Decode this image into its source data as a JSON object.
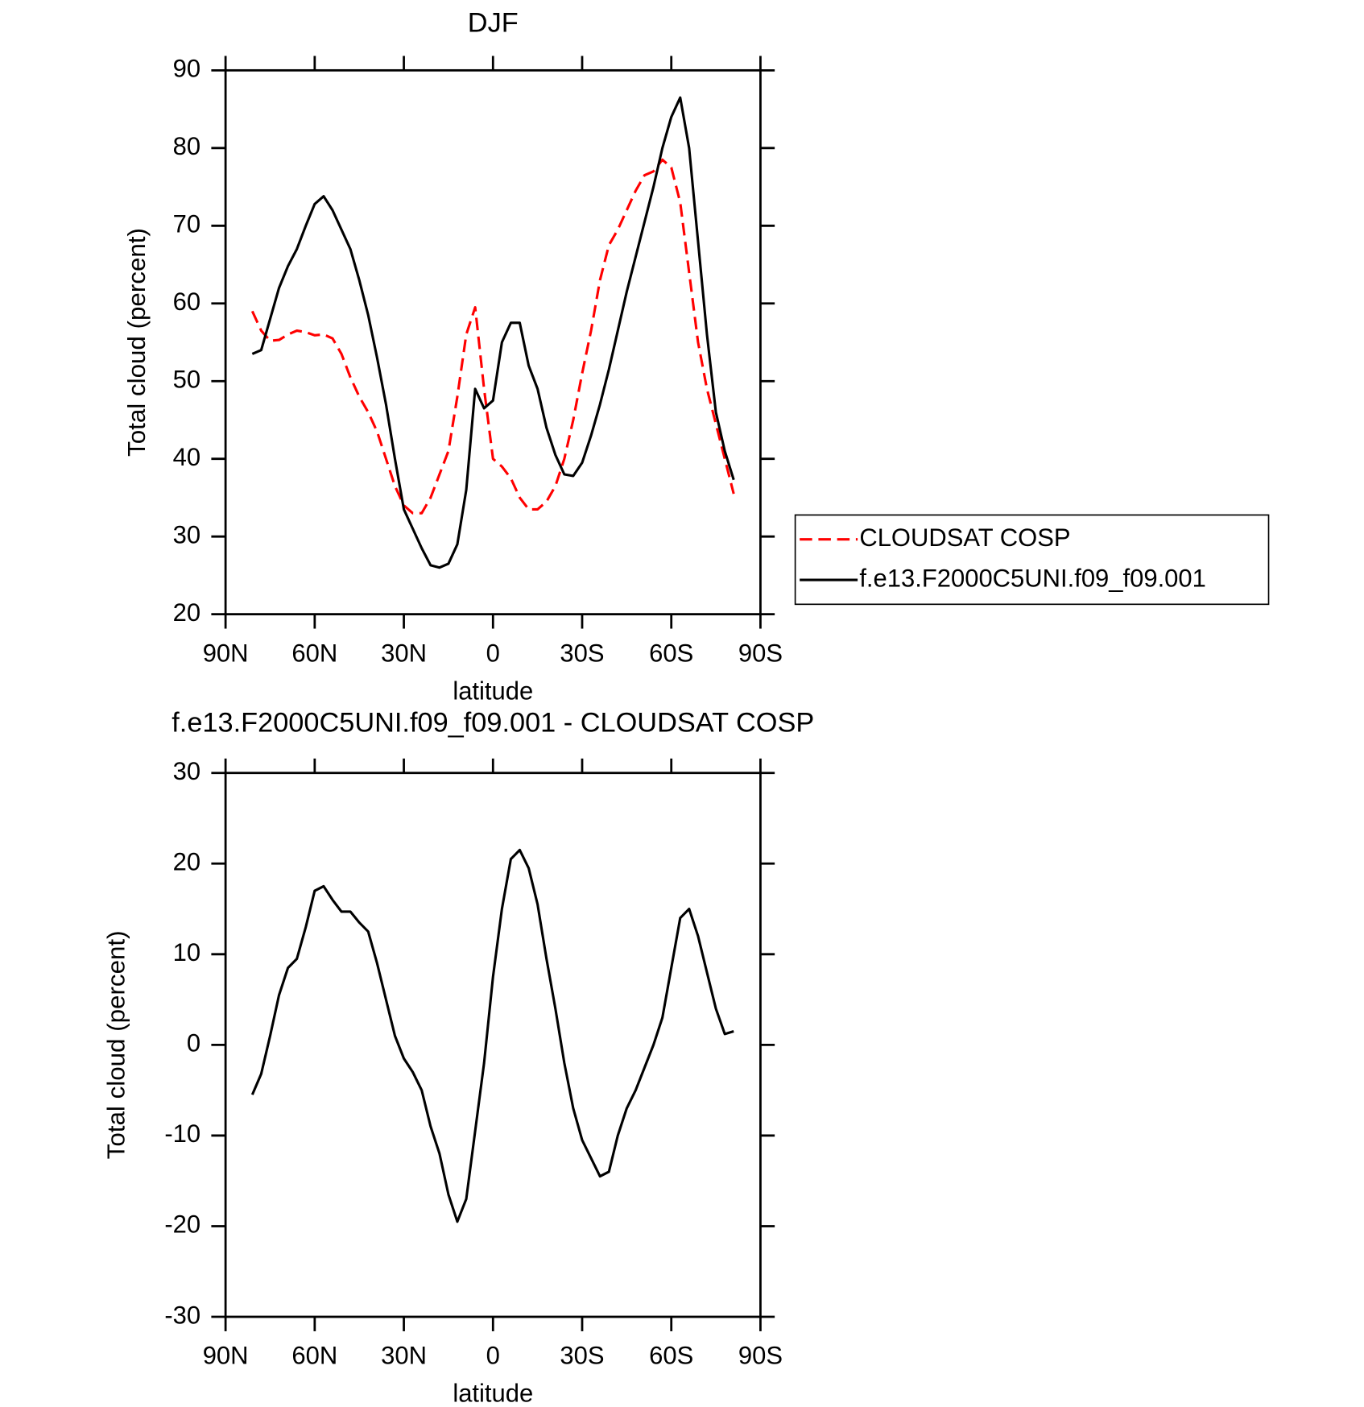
{
  "chart_data": [
    {
      "type": "line",
      "title": "DJF",
      "xlabel": "latitude",
      "ylabel": "Total cloud (percent)",
      "x": [
        81,
        78,
        75,
        72,
        69,
        66,
        63,
        60,
        57,
        54,
        51,
        48,
        45,
        42,
        39,
        36,
        33,
        30,
        27,
        24,
        21,
        18,
        15,
        12,
        9,
        6,
        3,
        0,
        -3,
        -6,
        -9,
        -12,
        -15,
        -18,
        -21,
        -24,
        -27,
        -30,
        -33,
        -36,
        -39,
        -42,
        -45,
        -48,
        -51,
        -54,
        -57,
        -60,
        -63,
        -66,
        -69,
        -72,
        -75,
        -78,
        -81
      ],
      "xlim": [
        90,
        -90
      ],
      "xticks": [
        {
          "value": 90,
          "label": "90N"
        },
        {
          "value": 60,
          "label": "60N"
        },
        {
          "value": 30,
          "label": "30N"
        },
        0,
        {
          "value": -30,
          "label": "30S"
        },
        {
          "value": -60,
          "label": "60S"
        },
        {
          "value": -90,
          "label": "90S"
        }
      ],
      "ylim": [
        20,
        90
      ],
      "yticks": [
        20,
        30,
        40,
        50,
        60,
        70,
        80,
        90
      ],
      "legend": "right",
      "series": [
        {
          "name": "CLOUDSAT COSP",
          "color": "#ff0000",
          "dash": "dashed",
          "values": [
            59,
            56.5,
            55.2,
            55.3,
            56,
            56.5,
            56.3,
            55.9,
            56,
            55.5,
            53.5,
            50.5,
            48,
            46,
            43.5,
            40,
            36.5,
            34,
            33,
            33,
            35,
            38,
            41,
            48,
            56,
            59.5,
            49,
            40,
            39,
            37.5,
            35,
            33.5,
            33.5,
            34.5,
            36.5,
            40,
            45,
            51,
            56.5,
            63,
            67.5,
            69.5,
            72,
            74.5,
            76.5,
            77,
            78.5,
            77.5,
            73,
            64,
            55,
            49,
            44.5,
            40,
            35.5
          ]
        },
        {
          "name": "f.e13.F2000C5UNI.f09_f09.001",
          "color": "#000000",
          "dash": "solid",
          "values": [
            53.5,
            54,
            58,
            62,
            64.8,
            67,
            70,
            72.8,
            73.8,
            72,
            69.5,
            67,
            63,
            58.5,
            53,
            47,
            40,
            33.5,
            31,
            28.5,
            26.3,
            26,
            26.5,
            29,
            36,
            49,
            46.5,
            47.5,
            55,
            57.5,
            57.5,
            52,
            49,
            44,
            40.5,
            38,
            37.8,
            39.5,
            43,
            47,
            51.5,
            56.5,
            61.5,
            66,
            70.5,
            75,
            80,
            84,
            86.5,
            80,
            68,
            56,
            46,
            41,
            37.3
          ]
        }
      ]
    },
    {
      "type": "line",
      "title": "f.e13.F2000C5UNI.f09_f09.001 - CLOUDSAT COSP",
      "xlabel": "latitude",
      "ylabel": "Total cloud (percent)",
      "x": [
        81,
        78,
        75,
        72,
        69,
        66,
        63,
        60,
        57,
        54,
        51,
        48,
        45,
        42,
        39,
        36,
        33,
        30,
        27,
        24,
        21,
        18,
        15,
        12,
        9,
        6,
        3,
        0,
        -3,
        -6,
        -9,
        -12,
        -15,
        -18,
        -21,
        -24,
        -27,
        -30,
        -33,
        -36,
        -39,
        -42,
        -45,
        -48,
        -51,
        -54,
        -57,
        -60,
        -63,
        -66,
        -69,
        -72,
        -75,
        -78,
        -81
      ],
      "xlim": [
        90,
        -90
      ],
      "xticks": [
        {
          "value": 90,
          "label": "90N"
        },
        {
          "value": 60,
          "label": "60N"
        },
        {
          "value": 30,
          "label": "30N"
        },
        0,
        {
          "value": -30,
          "label": "30S"
        },
        {
          "value": -60,
          "label": "60S"
        },
        {
          "value": -90,
          "label": "90S"
        }
      ],
      "ylim": [
        -30,
        30
      ],
      "yticks": [
        -30,
        -20,
        -10,
        0,
        10,
        20,
        30
      ],
      "series": [
        {
          "color": "#000000",
          "dash": "solid",
          "values": [
            -5.5,
            -3.2,
            1,
            5.5,
            8.5,
            9.5,
            13,
            17,
            17.5,
            16,
            14.7,
            14.7,
            13.5,
            12.5,
            9,
            5,
            1,
            -1.5,
            -3,
            -5,
            -9,
            -12,
            -16.5,
            -19.5,
            -17,
            -9.5,
            -2,
            7.5,
            15,
            20.5,
            21.5,
            19.5,
            15.5,
            9.5,
            4,
            -2,
            -7,
            -10.5,
            -12.5,
            -14.5,
            -14,
            -10,
            -7,
            -5,
            -2.5,
            0,
            3,
            8.5,
            14,
            15,
            12,
            8,
            4,
            1.2,
            1.5
          ]
        }
      ]
    }
  ]
}
